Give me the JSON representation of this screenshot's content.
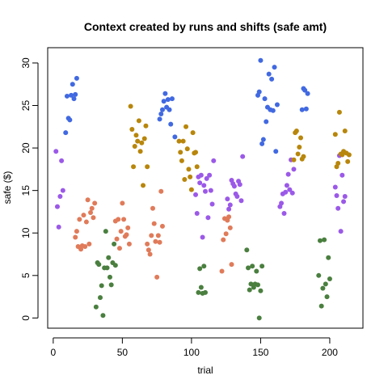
{
  "chart_data": {
    "type": "scatter",
    "title": "Context created by runs and shifts (safe amt)",
    "xlabel": "trial",
    "ylabel": "safe ($)",
    "xlim": [
      -4,
      224
    ],
    "ylim": [
      -1.2,
      31.8
    ],
    "xticks": [
      "0",
      "50",
      "100",
      "150",
      "200"
    ],
    "yticks": [
      "0",
      "5",
      "10",
      "15",
      "20",
      "25",
      "30"
    ],
    "grid": false,
    "legend": "none",
    "series": [
      {
        "color": "#4169e1",
        "points": [
          [
            9,
            21.8
          ],
          [
            10,
            26.1
          ],
          [
            11,
            23.5
          ],
          [
            12,
            23.3
          ],
          [
            13,
            26.2
          ],
          [
            14,
            27.5
          ],
          [
            15,
            25.8
          ],
          [
            16,
            26.3
          ],
          [
            17,
            28.2
          ],
          [
            77,
            23.4
          ],
          [
            78,
            24
          ],
          [
            79,
            24.5
          ],
          [
            80,
            25.5
          ],
          [
            81,
            26.4
          ],
          [
            82,
            24.8
          ],
          [
            83,
            25.7
          ],
          [
            84,
            24.5
          ],
          [
            85,
            22.8
          ],
          [
            86,
            25.8
          ],
          [
            88,
            21.3
          ],
          [
            148,
            26.2
          ],
          [
            149,
            26.6
          ],
          [
            150,
            30.3
          ],
          [
            151,
            20.5
          ],
          [
            152,
            21
          ],
          [
            153,
            25.8
          ],
          [
            154,
            23.1
          ],
          [
            155,
            24.8
          ],
          [
            156,
            28.7
          ],
          [
            157,
            24.5
          ],
          [
            158,
            28.1
          ],
          [
            159,
            24.4
          ],
          [
            160,
            29.5
          ],
          [
            161,
            19.6
          ],
          [
            162,
            25.1
          ],
          [
            180,
            24.5
          ],
          [
            181,
            27
          ],
          [
            182,
            26.8
          ],
          [
            183,
            24.6
          ],
          [
            184,
            26.4
          ]
        ]
      },
      {
        "color": "#9b59e8",
        "points": [
          [
            2,
            19.6
          ],
          [
            3,
            13.1
          ],
          [
            4,
            10.7
          ],
          [
            5,
            14.3
          ],
          [
            6,
            18.5
          ],
          [
            7,
            15
          ],
          [
            103,
            14.5
          ],
          [
            104,
            12.3
          ],
          [
            105,
            16.6
          ],
          [
            106,
            15.9
          ],
          [
            107,
            16.8
          ],
          [
            108,
            9.5
          ],
          [
            109,
            15.6
          ],
          [
            110,
            14.9
          ],
          [
            111,
            16.4
          ],
          [
            112,
            11.8
          ],
          [
            113,
            16.8
          ],
          [
            114,
            15
          ],
          [
            115,
            13.4
          ],
          [
            116,
            18.5
          ],
          [
            126,
            14
          ],
          [
            127,
            12.8
          ],
          [
            128,
            13.3
          ],
          [
            129,
            16.2
          ],
          [
            130,
            15.8
          ],
          [
            131,
            15.5
          ],
          [
            132,
            14.6
          ],
          [
            133,
            14.3
          ],
          [
            134,
            16.1
          ],
          [
            135,
            15.7
          ],
          [
            136,
            13.8
          ],
          [
            137,
            19
          ],
          [
            164,
            13.1
          ],
          [
            165,
            13.5
          ],
          [
            166,
            14.6
          ],
          [
            167,
            12.3
          ],
          [
            168,
            14.8
          ],
          [
            169,
            15.6
          ],
          [
            170,
            16.9
          ],
          [
            171,
            15.1
          ],
          [
            172,
            18.6
          ],
          [
            173,
            14.7
          ],
          [
            174,
            17.5
          ],
          [
            204,
            15.4
          ],
          [
            205,
            14.4
          ],
          [
            206,
            12.9
          ],
          [
            207,
            19.1
          ],
          [
            208,
            10.2
          ],
          [
            209,
            16.8
          ],
          [
            210,
            13.7
          ],
          [
            211,
            14.3
          ]
        ]
      },
      {
        "color": "#e07b5a",
        "points": [
          [
            16,
            9.5
          ],
          [
            17,
            10.2
          ],
          [
            18,
            8.4
          ],
          [
            19,
            11.6
          ],
          [
            20,
            8.1
          ],
          [
            21,
            8.5
          ],
          [
            22,
            12.1
          ],
          [
            23,
            8.4
          ],
          [
            24,
            11.3
          ],
          [
            25,
            13.9
          ],
          [
            26,
            8.7
          ],
          [
            27,
            12.4
          ],
          [
            28,
            12.9
          ],
          [
            29,
            11.8
          ],
          [
            30,
            13.5
          ],
          [
            45,
            11.4
          ],
          [
            46,
            9.3
          ],
          [
            47,
            11.6
          ],
          [
            48,
            8.2
          ],
          [
            49,
            10.2
          ],
          [
            50,
            13.5
          ],
          [
            51,
            11.6
          ],
          [
            52,
            9.6
          ],
          [
            53,
            9.8
          ],
          [
            54,
            10.6
          ],
          [
            55,
            8.7
          ],
          [
            68,
            8.7
          ],
          [
            69,
            8
          ],
          [
            70,
            7.5
          ],
          [
            71,
            9.7
          ],
          [
            72,
            12.9
          ],
          [
            73,
            11.1
          ],
          [
            74,
            9
          ],
          [
            75,
            4.8
          ],
          [
            76,
            9.7
          ],
          [
            77,
            8.9
          ],
          [
            78,
            14.9
          ],
          [
            79,
            10.8
          ],
          [
            122,
            5.5
          ],
          [
            123,
            9.2
          ],
          [
            124,
            11.7
          ],
          [
            125,
            9.9
          ],
          [
            126,
            11.5
          ],
          [
            127,
            11.9
          ],
          [
            128,
            10.6
          ],
          [
            129,
            6.3
          ]
        ]
      },
      {
        "color": "#4a7f3f",
        "points": [
          [
            31,
            1.3
          ],
          [
            32,
            6.5
          ],
          [
            33,
            6.3
          ],
          [
            34,
            2.4
          ],
          [
            35,
            3.8
          ],
          [
            36,
            0.3
          ],
          [
            37,
            5.9
          ],
          [
            38,
            10.2
          ],
          [
            39,
            5.9
          ],
          [
            40,
            7.1
          ],
          [
            41,
            4.8
          ],
          [
            42,
            3.9
          ],
          [
            43,
            6.5
          ],
          [
            44,
            8.7
          ],
          [
            45,
            6.2
          ],
          [
            105,
            3
          ],
          [
            106,
            5.8
          ],
          [
            107,
            3.6
          ],
          [
            108,
            2.9
          ],
          [
            109,
            6.1
          ],
          [
            110,
            3
          ],
          [
            140,
            8
          ],
          [
            141,
            5.9
          ],
          [
            142,
            3.3
          ],
          [
            143,
            4
          ],
          [
            144,
            6.1
          ],
          [
            145,
            3.6
          ],
          [
            146,
            4
          ],
          [
            147,
            5.5
          ],
          [
            148,
            3.9
          ],
          [
            149,
            0
          ],
          [
            150,
            3.2
          ],
          [
            151,
            6.1
          ],
          [
            192,
            5
          ],
          [
            193,
            9.1
          ],
          [
            194,
            1.4
          ],
          [
            195,
            3.5
          ],
          [
            196,
            9.2
          ],
          [
            197,
            4
          ],
          [
            198,
            2.5
          ],
          [
            199,
            7.1
          ],
          [
            200,
            4.6
          ]
        ]
      },
      {
        "color": "#b8860b",
        "points": [
          [
            56,
            24.9
          ],
          [
            57,
            22.2
          ],
          [
            58,
            17.8
          ],
          [
            59,
            20.2
          ],
          [
            60,
            21.5
          ],
          [
            61,
            20.8
          ],
          [
            62,
            23.2
          ],
          [
            63,
            19.6
          ],
          [
            64,
            20.6
          ],
          [
            65,
            15.6
          ],
          [
            66,
            21.1
          ],
          [
            67,
            22.6
          ],
          [
            68,
            17.8
          ],
          [
            91,
            20.8
          ],
          [
            92,
            19.5
          ],
          [
            93,
            18.5
          ],
          [
            94,
            20.8
          ],
          [
            95,
            16.3
          ],
          [
            96,
            22.5
          ],
          [
            97,
            19.9
          ],
          [
            98,
            17.5
          ],
          [
            99,
            16.6
          ],
          [
            100,
            15.1
          ],
          [
            101,
            21.8
          ],
          [
            102,
            19.4
          ],
          [
            103,
            19.5
          ],
          [
            104,
            17.8
          ],
          [
            174,
            18.6
          ],
          [
            175,
            21.8
          ],
          [
            176,
            22
          ],
          [
            177,
            19.3
          ],
          [
            178,
            20.1
          ],
          [
            179,
            21.2
          ],
          [
            180,
            18.7
          ],
          [
            181,
            19
          ],
          [
            204,
            21.6
          ],
          [
            205,
            17.8
          ],
          [
            206,
            18.2
          ],
          [
            207,
            24.2
          ],
          [
            208,
            19.3
          ],
          [
            209,
            19.2
          ],
          [
            210,
            19.6
          ],
          [
            211,
            22
          ],
          [
            212,
            19.4
          ],
          [
            213,
            18.4
          ],
          [
            214,
            19.2
          ]
        ]
      }
    ]
  }
}
